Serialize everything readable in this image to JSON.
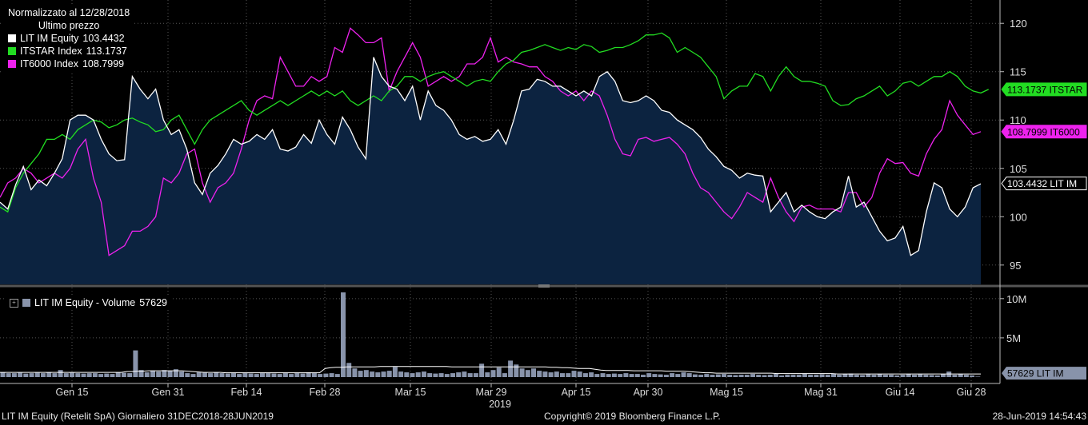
{
  "legend": {
    "title": "Normalizzato al 12/28/2018",
    "subtitle": "Ultimo prezzo",
    "items": [
      {
        "label": "LIT IM Equity",
        "value": "103.4432",
        "color": "#ffffff"
      },
      {
        "label": "ITSTAR Index",
        "value": "113.1737",
        "color": "#22dd22"
      },
      {
        "label": "IT6000 Index",
        "value": "108.7999",
        "color": "#ee22ee"
      }
    ]
  },
  "volume_legend": {
    "label": "LIT IM Equity - Volume",
    "value": "57629",
    "color": "#8893aa"
  },
  "footer": {
    "left": "LIT IM Equity (Retelit SpA)  Giornaliero 31DEC2018-28JUN2019",
    "center": "Copyright© 2019 Bloomberg Finance L.P.",
    "right": "28-Jun-2019 14:54:43"
  },
  "chart_data": [
    {
      "type": "line",
      "title": "",
      "ylim": [
        93,
        122
      ],
      "y_ticks": [
        95,
        100,
        105,
        110,
        115,
        120
      ],
      "x_tick_labels": [
        "Gen 15",
        "Gen 31",
        "Feb 14",
        "Feb 28",
        "Mar 15",
        "Mar 29",
        "Apr 15",
        "Apr 30",
        "Mag 15",
        "Mag 31",
        "Giu 14",
        "Giu 28"
      ],
      "x_year_label": "2019",
      "last_value_tags": [
        {
          "text": "113.1737 ITSTAR",
          "value": 113.17,
          "color": "#22dd22",
          "text_color": "#000000"
        },
        {
          "text": "108.7999 IT6000",
          "value": 108.8,
          "color": "#ee22ee",
          "text_color": "#000000"
        },
        {
          "text": "103.4432 LIT IM",
          "value": 103.44,
          "color": "#ffffff",
          "text_color": "#000000"
        }
      ],
      "series": [
        {
          "name": "LIT IM Equity",
          "color": "#ffffff",
          "fill": "#0c2340",
          "values": [
            101.5,
            100.8,
            103.3,
            105.2,
            102.8,
            103.8,
            103.2,
            104.5,
            106.0,
            110.0,
            110.5,
            110.5,
            110.0,
            108.0,
            106.5,
            105.8,
            105.9,
            114.5,
            113.2,
            112.2,
            113.2,
            110.0,
            108.5,
            109.0,
            107.0,
            103.5,
            102.3,
            104.5,
            105.3,
            106.5,
            108.0,
            107.5,
            107.8,
            108.5,
            108.0,
            109.0,
            107.0,
            106.8,
            107.2,
            108.5,
            107.6,
            110.0,
            108.5,
            107.5,
            110.3,
            109.0,
            107.2,
            106.0,
            116.5,
            114.5,
            113.5,
            113.2,
            112.0,
            113.5,
            110.0,
            113.0,
            111.5,
            111.0,
            110.0,
            108.5,
            108.0,
            108.3,
            107.8,
            108.0,
            109.0,
            107.5,
            110.0,
            113.0,
            113.2,
            114.2,
            114.0,
            113.5,
            113.5,
            113.0,
            112.5,
            113.0,
            112.5,
            114.5,
            115.0,
            114.0,
            112.0,
            111.8,
            112.0,
            112.5,
            112.0,
            111.0,
            110.8,
            110.0,
            109.5,
            109.0,
            108.2,
            107.0,
            106.2,
            105.2,
            104.8,
            104.0,
            104.5,
            104.3,
            104.2,
            100.5,
            101.5,
            102.5,
            100.5,
            101.2,
            100.5,
            100.0,
            99.8,
            100.5,
            101.0,
            104.2,
            101.0,
            101.5,
            100.0,
            98.5,
            97.5,
            97.8,
            99.0,
            96.0,
            96.5,
            100.5,
            103.5,
            103.0,
            100.8,
            100.0,
            101.0,
            103.0,
            103.4
          ]
        },
        {
          "name": "ITSTAR Index",
          "color": "#22dd22",
          "values": [
            101.0,
            100.5,
            103.0,
            104.5,
            105.5,
            106.5,
            108.0,
            108.0,
            108.5,
            108.0,
            109.0,
            109.5,
            110.0,
            109.8,
            109.2,
            109.5,
            110.0,
            110.2,
            109.8,
            109.5,
            108.8,
            109.0,
            110.0,
            110.5,
            109.0,
            107.5,
            109.0,
            110.0,
            110.5,
            111.0,
            111.5,
            112.0,
            111.0,
            110.5,
            111.0,
            111.5,
            112.0,
            111.5,
            112.0,
            112.5,
            113.0,
            112.5,
            113.0,
            112.5,
            113.0,
            112.0,
            111.5,
            112.0,
            112.5,
            112.0,
            113.0,
            113.5,
            114.5,
            114.5,
            114.0,
            114.5,
            114.8,
            115.0,
            114.5,
            114.0,
            113.5,
            114.0,
            114.2,
            114.0,
            115.0,
            115.8,
            116.2,
            117.0,
            117.2,
            117.5,
            117.8,
            117.5,
            117.2,
            117.5,
            117.3,
            117.8,
            117.6,
            117.0,
            117.2,
            117.5,
            117.5,
            117.8,
            118.2,
            118.8,
            118.8,
            119.0,
            118.5,
            117.0,
            117.5,
            117.0,
            116.5,
            115.5,
            114.5,
            112.2,
            113.0,
            113.5,
            113.5,
            114.8,
            114.5,
            113.0,
            114.5,
            115.5,
            114.5,
            114.0,
            114.0,
            113.8,
            113.5,
            112.0,
            111.5,
            111.6,
            112.2,
            112.5,
            113.0,
            113.5,
            112.5,
            113.0,
            113.8,
            114.0,
            113.5,
            114.0,
            114.5,
            114.5,
            115.0,
            114.5,
            113.5,
            113.0,
            112.8,
            113.17
          ]
        },
        {
          "name": "IT6000 Index",
          "color": "#ee22ee",
          "values": [
            102.0,
            103.5,
            104.0,
            105.0,
            104.5,
            103.5,
            104.0,
            104.5,
            104.0,
            105.0,
            107.0,
            108.0,
            104.0,
            101.5,
            96.0,
            96.5,
            97.0,
            98.5,
            98.5,
            99.0,
            100.0,
            104.0,
            103.5,
            104.5,
            106.5,
            107.0,
            103.5,
            101.5,
            103.0,
            103.5,
            104.5,
            107.0,
            110.0,
            112.0,
            112.5,
            112.2,
            116.5,
            115.0,
            113.5,
            113.5,
            114.5,
            114.0,
            114.5,
            117.5,
            117.0,
            119.5,
            118.8,
            118.0,
            118.0,
            118.5,
            113.0,
            115.0,
            116.5,
            118.0,
            116.5,
            113.5,
            114.0,
            114.5,
            114.0,
            114.5,
            115.8,
            115.8,
            116.5,
            118.5,
            116.0,
            116.5,
            116.0,
            115.8,
            115.5,
            115.5,
            114.5,
            114.0,
            113.0,
            112.5,
            113.0,
            112.0,
            113.0,
            112.5,
            110.5,
            108.0,
            106.5,
            106.3,
            108.0,
            108.2,
            107.8,
            108.0,
            108.2,
            107.5,
            106.5,
            104.5,
            103.0,
            102.5,
            101.5,
            100.5,
            99.8,
            101.0,
            102.5,
            102.0,
            101.5,
            104.0,
            102.0,
            100.5,
            99.5,
            101.0,
            101.2,
            100.8,
            100.8,
            100.8,
            100.5,
            102.5,
            102.5,
            101.0,
            102.0,
            104.5,
            106.0,
            105.5,
            105.6,
            104.5,
            104.2,
            106.5,
            108.0,
            109.0,
            112.0,
            110.5,
            109.5,
            108.5,
            108.8
          ]
        }
      ]
    },
    {
      "type": "bar",
      "title": "",
      "ylim": [
        0,
        11000000
      ],
      "y_ticks": [
        {
          "value": 5000000,
          "label": "5M"
        },
        {
          "value": 10000000,
          "label": "10M"
        }
      ],
      "last_value_tag": {
        "text": "57629 LIT IM",
        "value": 500000,
        "color": "#8893aa"
      },
      "series": [
        {
          "name": "LIT IM Equity - Volume",
          "color": "#8893aa",
          "values": [
            600000,
            500000,
            500000,
            550000,
            450000,
            500000,
            550000,
            500000,
            600000,
            500000,
            900000,
            500000,
            550000,
            500000,
            450000,
            500000,
            500000,
            400000,
            450000,
            400000,
            600000,
            550000,
            500000,
            3400000,
            900000,
            600000,
            800000,
            700000,
            900000,
            800000,
            1000000,
            700000,
            500000,
            400000,
            600000,
            550000,
            500000,
            600000,
            500000,
            450000,
            500000,
            400000,
            500000,
            450000,
            400000,
            500000,
            500000,
            450000,
            400000,
            500000,
            400000,
            500000,
            450000,
            600000,
            500000,
            400000,
            450000,
            500000,
            400000,
            10800000,
            1800000,
            1100000,
            800000,
            900000,
            700000,
            600000,
            700000,
            800000,
            1300000,
            700000,
            600000,
            500000,
            600000,
            700000,
            500000,
            450000,
            500000,
            400000,
            500000,
            600000,
            700000,
            500000,
            500000,
            1700000,
            600000,
            900000,
            1200000,
            500000,
            2100000,
            1600000,
            1100000,
            900000,
            1100000,
            800000,
            700000,
            600000,
            700000,
            500000,
            500000,
            800000,
            700000,
            500000,
            600000,
            400000,
            500000,
            400000,
            450000,
            400000,
            500000,
            400000,
            400000,
            300000,
            500000,
            400000,
            350000,
            300000,
            500000,
            400000,
            600000,
            500000,
            350000,
            300000,
            400000,
            300000,
            350000,
            400000,
            300000,
            250000,
            300000,
            300000,
            400000,
            300000,
            250000,
            300000,
            400000,
            200000,
            300000,
            300000,
            300000,
            400000,
            300000,
            300000,
            350000,
            300000,
            400000,
            300000,
            400000,
            450000,
            300000,
            250000,
            350000,
            300000,
            400000,
            300000,
            300000,
            200000,
            300000,
            400000,
            300000,
            350000,
            300000,
            250000,
            200000,
            400000,
            700000,
            300000,
            400000,
            300000,
            200000,
            57629
          ]
        },
        {
          "name": "LIT IM Equity - Volume avg",
          "color": "#ffffff",
          "values": [
            600000,
            600000,
            600000,
            600000,
            600000,
            600000,
            600000,
            600000,
            600000,
            600000,
            600000,
            600000,
            600000,
            600000,
            600000,
            600000,
            600000,
            600000,
            600000,
            600000,
            600000,
            600000,
            600000,
            700000,
            700000,
            750000,
            750000,
            800000,
            800000,
            800000,
            800000,
            800000,
            800000,
            800000,
            750000,
            700000,
            650000,
            600000,
            600000,
            600000,
            600000,
            550000,
            550000,
            550000,
            550000,
            550000,
            550000,
            550000,
            550000,
            550000,
            550000,
            550000,
            550000,
            550000,
            550000,
            550000,
            550000,
            550000,
            550000,
            1100000,
            1200000,
            1250000,
            1250000,
            1300000,
            1300000,
            1300000,
            1300000,
            1300000,
            1300000,
            1350000,
            1350000,
            1350000,
            1350000,
            1350000,
            1350000,
            1350000,
            1350000,
            1350000,
            1350000,
            1350000,
            1350000,
            1350000,
            1300000,
            1300000,
            1300000,
            1300000,
            1300000,
            1300000,
            1300000,
            1300000,
            1300000,
            1300000,
            1300000,
            1300000,
            1300000,
            1300000,
            1300000,
            1300000,
            1300000,
            1300000,
            1250000,
            1250000,
            1200000,
            1200000,
            1150000,
            1100000,
            1100000,
            1100000,
            1000000,
            900000,
            850000,
            850000,
            850000,
            850000,
            850000,
            800000,
            800000,
            800000,
            800000,
            800000,
            800000,
            750000,
            750000,
            750000,
            750000,
            700000,
            650000,
            600000,
            550000,
            550000,
            500000,
            500000,
            500000,
            500000,
            500000,
            500000,
            500000,
            500000,
            500000,
            500000,
            500000,
            450000,
            450000,
            450000,
            450000,
            450000,
            450000,
            450000,
            450000,
            450000,
            450000,
            450000,
            400000,
            400000,
            400000,
            400000,
            400000,
            400000,
            400000,
            400000,
            400000,
            400000,
            400000,
            400000,
            400000,
            400000,
            400000,
            400000,
            400000,
            400000,
            400000,
            400000,
            400000,
            400000,
            400000,
            400000,
            400000,
            400000,
            400000
          ]
        }
      ]
    }
  ]
}
